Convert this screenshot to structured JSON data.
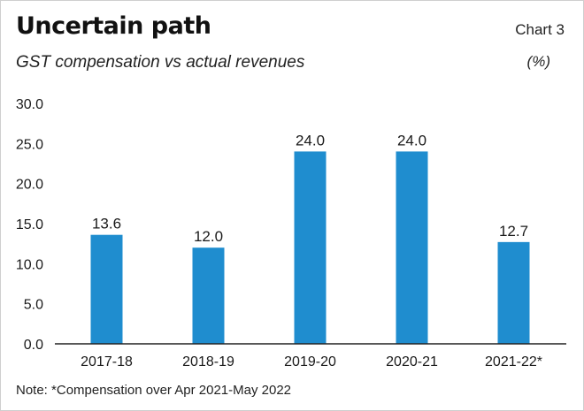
{
  "header": {
    "title": "Uncertain path",
    "subtitle": "GST compensation vs actual revenues",
    "chart_number": "Chart 3",
    "unit": "(%)"
  },
  "footer": {
    "note": "Note: *Compensation over Apr 2021-May 2022"
  },
  "colors": {
    "bar": "#1f8dcf",
    "axis": "#222222",
    "text": "#1a1a1a"
  },
  "chart_data": {
    "type": "bar",
    "title": "Uncertain path",
    "subtitle": "GST compensation vs actual revenues",
    "categories": [
      "2017-18",
      "2018-19",
      "2019-20",
      "2020-21",
      "2021-22*"
    ],
    "values": [
      13.6,
      12.0,
      24.0,
      24.0,
      12.7
    ],
    "value_labels": [
      "13.6",
      "12.0",
      "24.0",
      "24.0",
      "12.7"
    ],
    "xlabel": "",
    "ylabel": "",
    "unit": "(%)",
    "ylim": [
      0,
      30
    ],
    "yticks": [
      0,
      5,
      10,
      15,
      20,
      25,
      30
    ],
    "ytick_labels": [
      "0.0",
      "5.0",
      "10.0",
      "15.0",
      "20.0",
      "25.0",
      "30.0"
    ],
    "grid": false,
    "legend": "none"
  }
}
